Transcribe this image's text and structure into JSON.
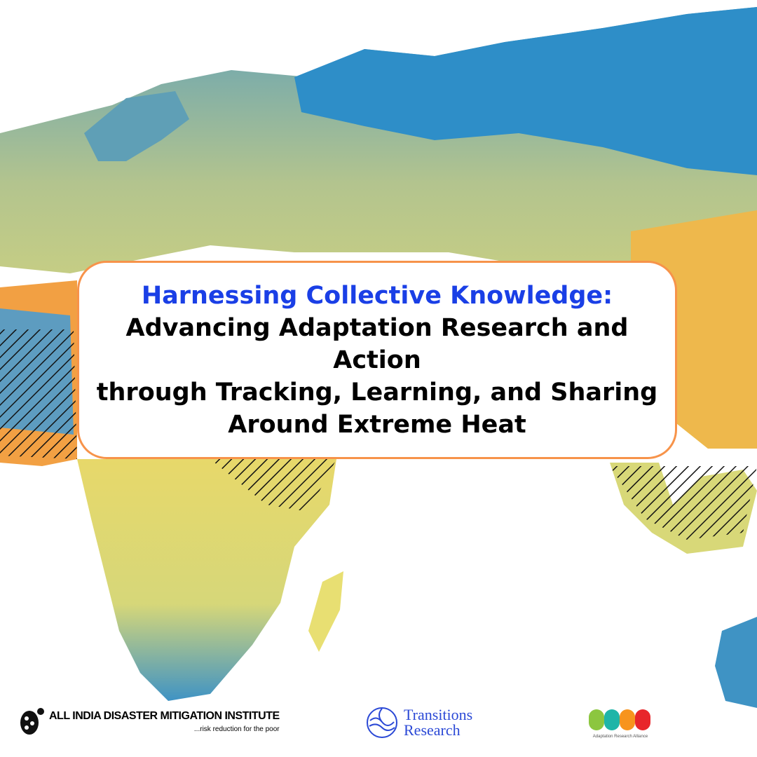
{
  "title": {
    "highlight": "Harnessing Collective Knowledge:",
    "lines": [
      "Advancing Adaptation Research and Action",
      "through Tracking, Learning, and Sharing",
      "Around Extreme Heat"
    ]
  },
  "logos": {
    "aidmi": {
      "name": "ALL INDIA DISASTER MITIGATION INSTITUTE",
      "tagline": "...risk reduction for the poor"
    },
    "transitions": {
      "line1": "Transitions",
      "line2": "Research"
    },
    "ara": {
      "name": "Adaptation Research Alliance"
    }
  },
  "colors": {
    "accent_blue": "#1a3fe6",
    "border_orange": "#f7934a",
    "map_blue": "#2e8ec8",
    "map_yellow": "#e9e276",
    "map_green": "#a9c08f",
    "map_orange": "#f2a043"
  }
}
